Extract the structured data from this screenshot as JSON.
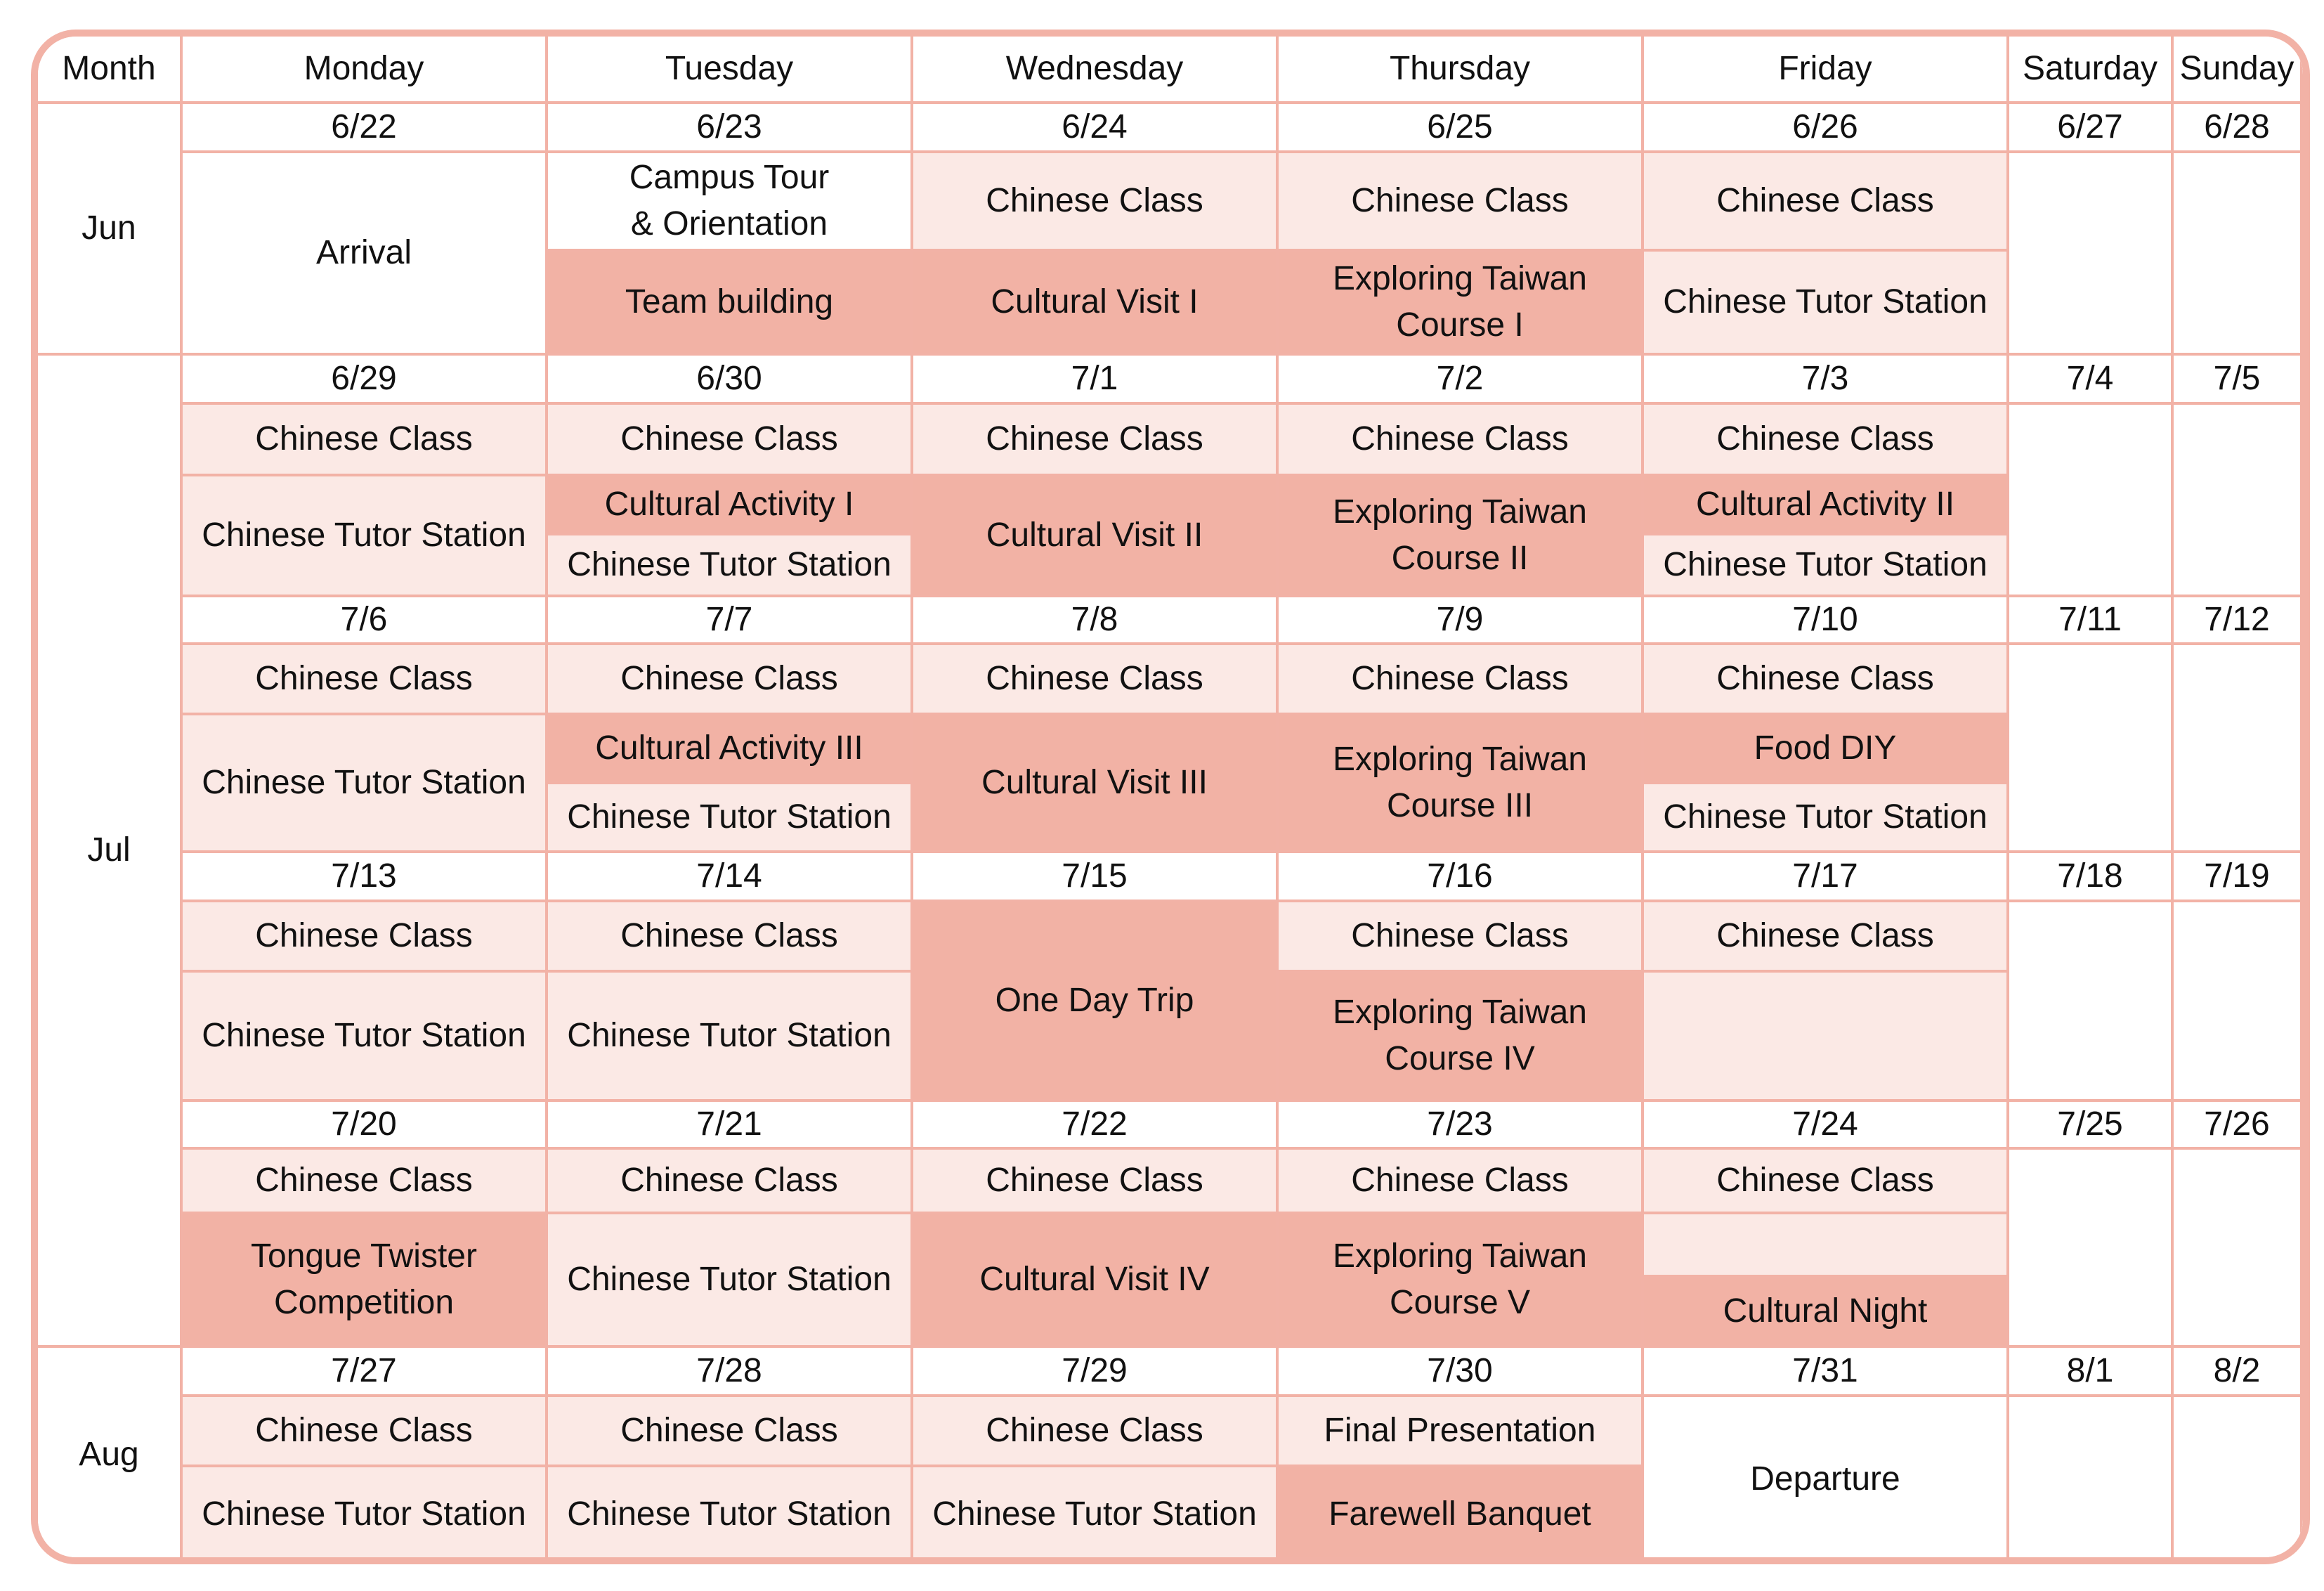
{
  "colors": {
    "border": "#f2b2a6",
    "light": "#fbe9e5",
    "dark": "#f2b2a5",
    "white": "#ffffff"
  },
  "headers": [
    "Month",
    "Monday",
    "Tuesday",
    "Wednesday",
    "Thursday",
    "Friday",
    "Saturday",
    "Sunday"
  ],
  "months": [
    "Jun",
    "Jul",
    "Aug"
  ],
  "dates": [
    [
      "6/22",
      "6/23",
      "6/24",
      "6/25",
      "6/26",
      "6/27",
      "6/28"
    ],
    [
      "6/29",
      "6/30",
      "7/1",
      "7/2",
      "7/3",
      "7/4",
      "7/5"
    ],
    [
      "7/6",
      "7/7",
      "7/8",
      "7/9",
      "7/10",
      "7/11",
      "7/12"
    ],
    [
      "7/13",
      "7/14",
      "7/15",
      "7/16",
      "7/17",
      "7/18",
      "7/19"
    ],
    [
      "7/20",
      "7/21",
      "7/22",
      "7/23",
      "7/24",
      "7/25",
      "7/26"
    ],
    [
      "7/27",
      "7/28",
      "7/29",
      "7/30",
      "7/31",
      "8/1",
      "8/2"
    ]
  ],
  "events": [
    {
      "name": "Arrival",
      "color": "white"
    },
    {
      "name": "Campus Tour\n& Orientation",
      "color": "white"
    },
    {
      "name": "Team building",
      "color": "dark"
    },
    {
      "name": "Chinese Class",
      "color": "light"
    },
    {
      "name": "Cultural Visit I",
      "color": "dark"
    },
    {
      "name": "Chinese Class",
      "color": "light"
    },
    {
      "name": "Exploring Taiwan\nCourse I",
      "color": "dark"
    },
    {
      "name": "Chinese Class",
      "color": "light"
    },
    {
      "name": "Chinese Tutor Station",
      "color": "light"
    },
    {
      "name": "Chinese Class",
      "color": "light"
    },
    {
      "name": "Chinese Tutor Station",
      "color": "light"
    },
    {
      "name": "Chinese Class",
      "color": "light"
    },
    {
      "name": "Cultural Activity I",
      "color": "dark"
    },
    {
      "name": "Chinese Tutor Station",
      "color": "light"
    },
    {
      "name": "Chinese Class",
      "color": "light"
    },
    {
      "name": "Cultural Visit II",
      "color": "dark"
    },
    {
      "name": "Chinese Class",
      "color": "light"
    },
    {
      "name": "Exploring Taiwan\nCourse II",
      "color": "dark"
    },
    {
      "name": "Chinese Class",
      "color": "light"
    },
    {
      "name": "Cultural Activity II",
      "color": "dark"
    },
    {
      "name": "Chinese Tutor Station",
      "color": "light"
    },
    {
      "name": "Chinese Class",
      "color": "light"
    },
    {
      "name": "Chinese Tutor Station",
      "color": "light"
    },
    {
      "name": "Chinese Class",
      "color": "light"
    },
    {
      "name": "Cultural Activity III",
      "color": "dark"
    },
    {
      "name": "Chinese Tutor Station",
      "color": "light"
    },
    {
      "name": "Chinese Class",
      "color": "light"
    },
    {
      "name": "Cultural Visit III",
      "color": "dark"
    },
    {
      "name": "Chinese Class",
      "color": "light"
    },
    {
      "name": "Exploring Taiwan\nCourse III",
      "color": "dark"
    },
    {
      "name": "Chinese Class",
      "color": "light"
    },
    {
      "name": "Food DIY",
      "color": "dark"
    },
    {
      "name": "Chinese Tutor Station",
      "color": "light"
    },
    {
      "name": "Chinese Class",
      "color": "light"
    },
    {
      "name": "Chinese Tutor Station",
      "color": "light"
    },
    {
      "name": "Chinese Class",
      "color": "light"
    },
    {
      "name": "Chinese Tutor Station",
      "color": "light"
    },
    {
      "name": "One Day Trip",
      "color": "dark"
    },
    {
      "name": "Chinese Class",
      "color": "light"
    },
    {
      "name": "Exploring Taiwan\nCourse IV",
      "color": "dark"
    },
    {
      "name": "Chinese Class",
      "color": "light"
    },
    {
      "name": "",
      "color": "light"
    },
    {
      "name": "Chinese Class",
      "color": "light"
    },
    {
      "name": "Tongue Twister\nCompetition",
      "color": "dark"
    },
    {
      "name": "Chinese Class",
      "color": "light"
    },
    {
      "name": "Chinese Tutor Station",
      "color": "light"
    },
    {
      "name": "Chinese Class",
      "color": "light"
    },
    {
      "name": "Cultural Visit IV",
      "color": "dark"
    },
    {
      "name": "Chinese Class",
      "color": "light"
    },
    {
      "name": "Exploring Taiwan\nCourse V",
      "color": "dark"
    },
    {
      "name": "Chinese Class",
      "color": "light"
    },
    {
      "name": "",
      "color": "light"
    },
    {
      "name": "Cultural Night",
      "color": "dark"
    },
    {
      "name": "Chinese Class",
      "color": "light"
    },
    {
      "name": "Chinese Tutor Station",
      "color": "light"
    },
    {
      "name": "Chinese Class",
      "color": "light"
    },
    {
      "name": "Chinese Tutor Station",
      "color": "light"
    },
    {
      "name": "Chinese Class",
      "color": "light"
    },
    {
      "name": "Chinese Tutor Station",
      "color": "light"
    },
    {
      "name": "Final Presentation",
      "color": "light"
    },
    {
      "name": "Farewell Banquet",
      "color": "dark"
    },
    {
      "name": "Departure",
      "color": "white"
    }
  ]
}
